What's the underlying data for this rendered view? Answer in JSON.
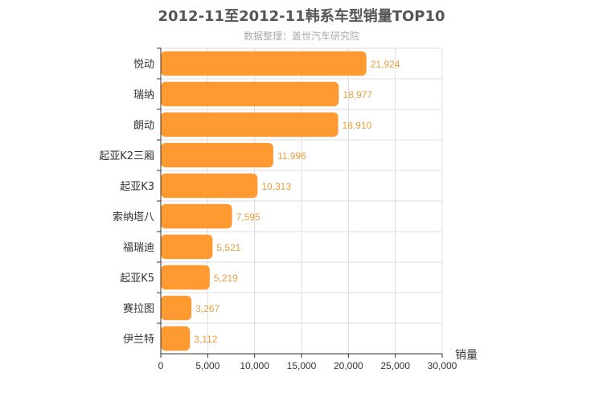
{
  "chart_data": {
    "type": "bar",
    "orientation": "horizontal",
    "title": "2012-11至2012-11韩系车型销量TOP10",
    "subtitle": "数据整理：盖世汽车研究院",
    "xlabel": "销量",
    "ylabel": "",
    "xlim": [
      0,
      30000
    ],
    "x_ticks": [
      "0",
      "5,000",
      "10,000",
      "15,000",
      "20,000",
      "25,000",
      "30,000"
    ],
    "x_tick_values": [
      0,
      5000,
      10000,
      15000,
      20000,
      25000,
      30000
    ],
    "grid": true,
    "categories": [
      "悦动",
      "瑞纳",
      "朗动",
      "起亚K2三厢",
      "起亚K3",
      "索纳塔八",
      "福瑞迪",
      "起亚K5",
      "赛拉图",
      "伊兰特"
    ],
    "values": [
      21924,
      18977,
      18910,
      11996,
      10313,
      7595,
      5521,
      5219,
      3267,
      3112
    ],
    "value_labels": [
      "21,924",
      "18,977",
      "18,910",
      "11,996",
      "10,313",
      "7,595",
      "5,521",
      "5,219",
      "3,267",
      "3,112"
    ],
    "colors": {
      "bar": "#ff9a33",
      "value_label": "#e8a040",
      "axis": "#333333",
      "grid": "#dddddd"
    }
  }
}
